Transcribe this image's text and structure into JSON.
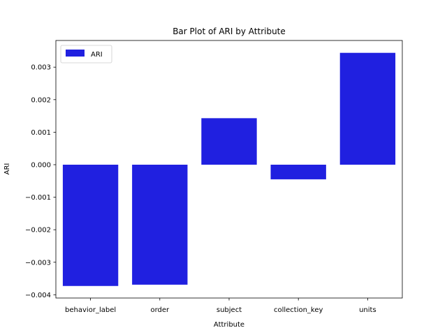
{
  "chart_data": {
    "type": "bar",
    "title": "Bar Plot of ARI by Attribute",
    "xlabel": "Attribute",
    "ylabel": "ARI",
    "categories": [
      "behavior_label",
      "order",
      "subject",
      "collection_key",
      "units"
    ],
    "series": [
      {
        "name": "ARI",
        "values": [
          -0.00373,
          -0.00369,
          0.00143,
          -0.00045,
          0.00344
        ]
      }
    ],
    "ylim": [
      -0.0041,
      0.00382
    ],
    "yticks": [
      -0.004,
      -0.003,
      -0.002,
      -0.001,
      0.0,
      0.001,
      0.002,
      0.003
    ],
    "ytick_labels": [
      "−0.004",
      "−0.003",
      "−0.002",
      "−0.001",
      "0.000",
      "0.001",
      "0.002",
      "0.003"
    ],
    "bar_color": "#2020e0",
    "legend": {
      "position": "top-left",
      "entries": [
        "ARI"
      ]
    },
    "grid": false
  }
}
